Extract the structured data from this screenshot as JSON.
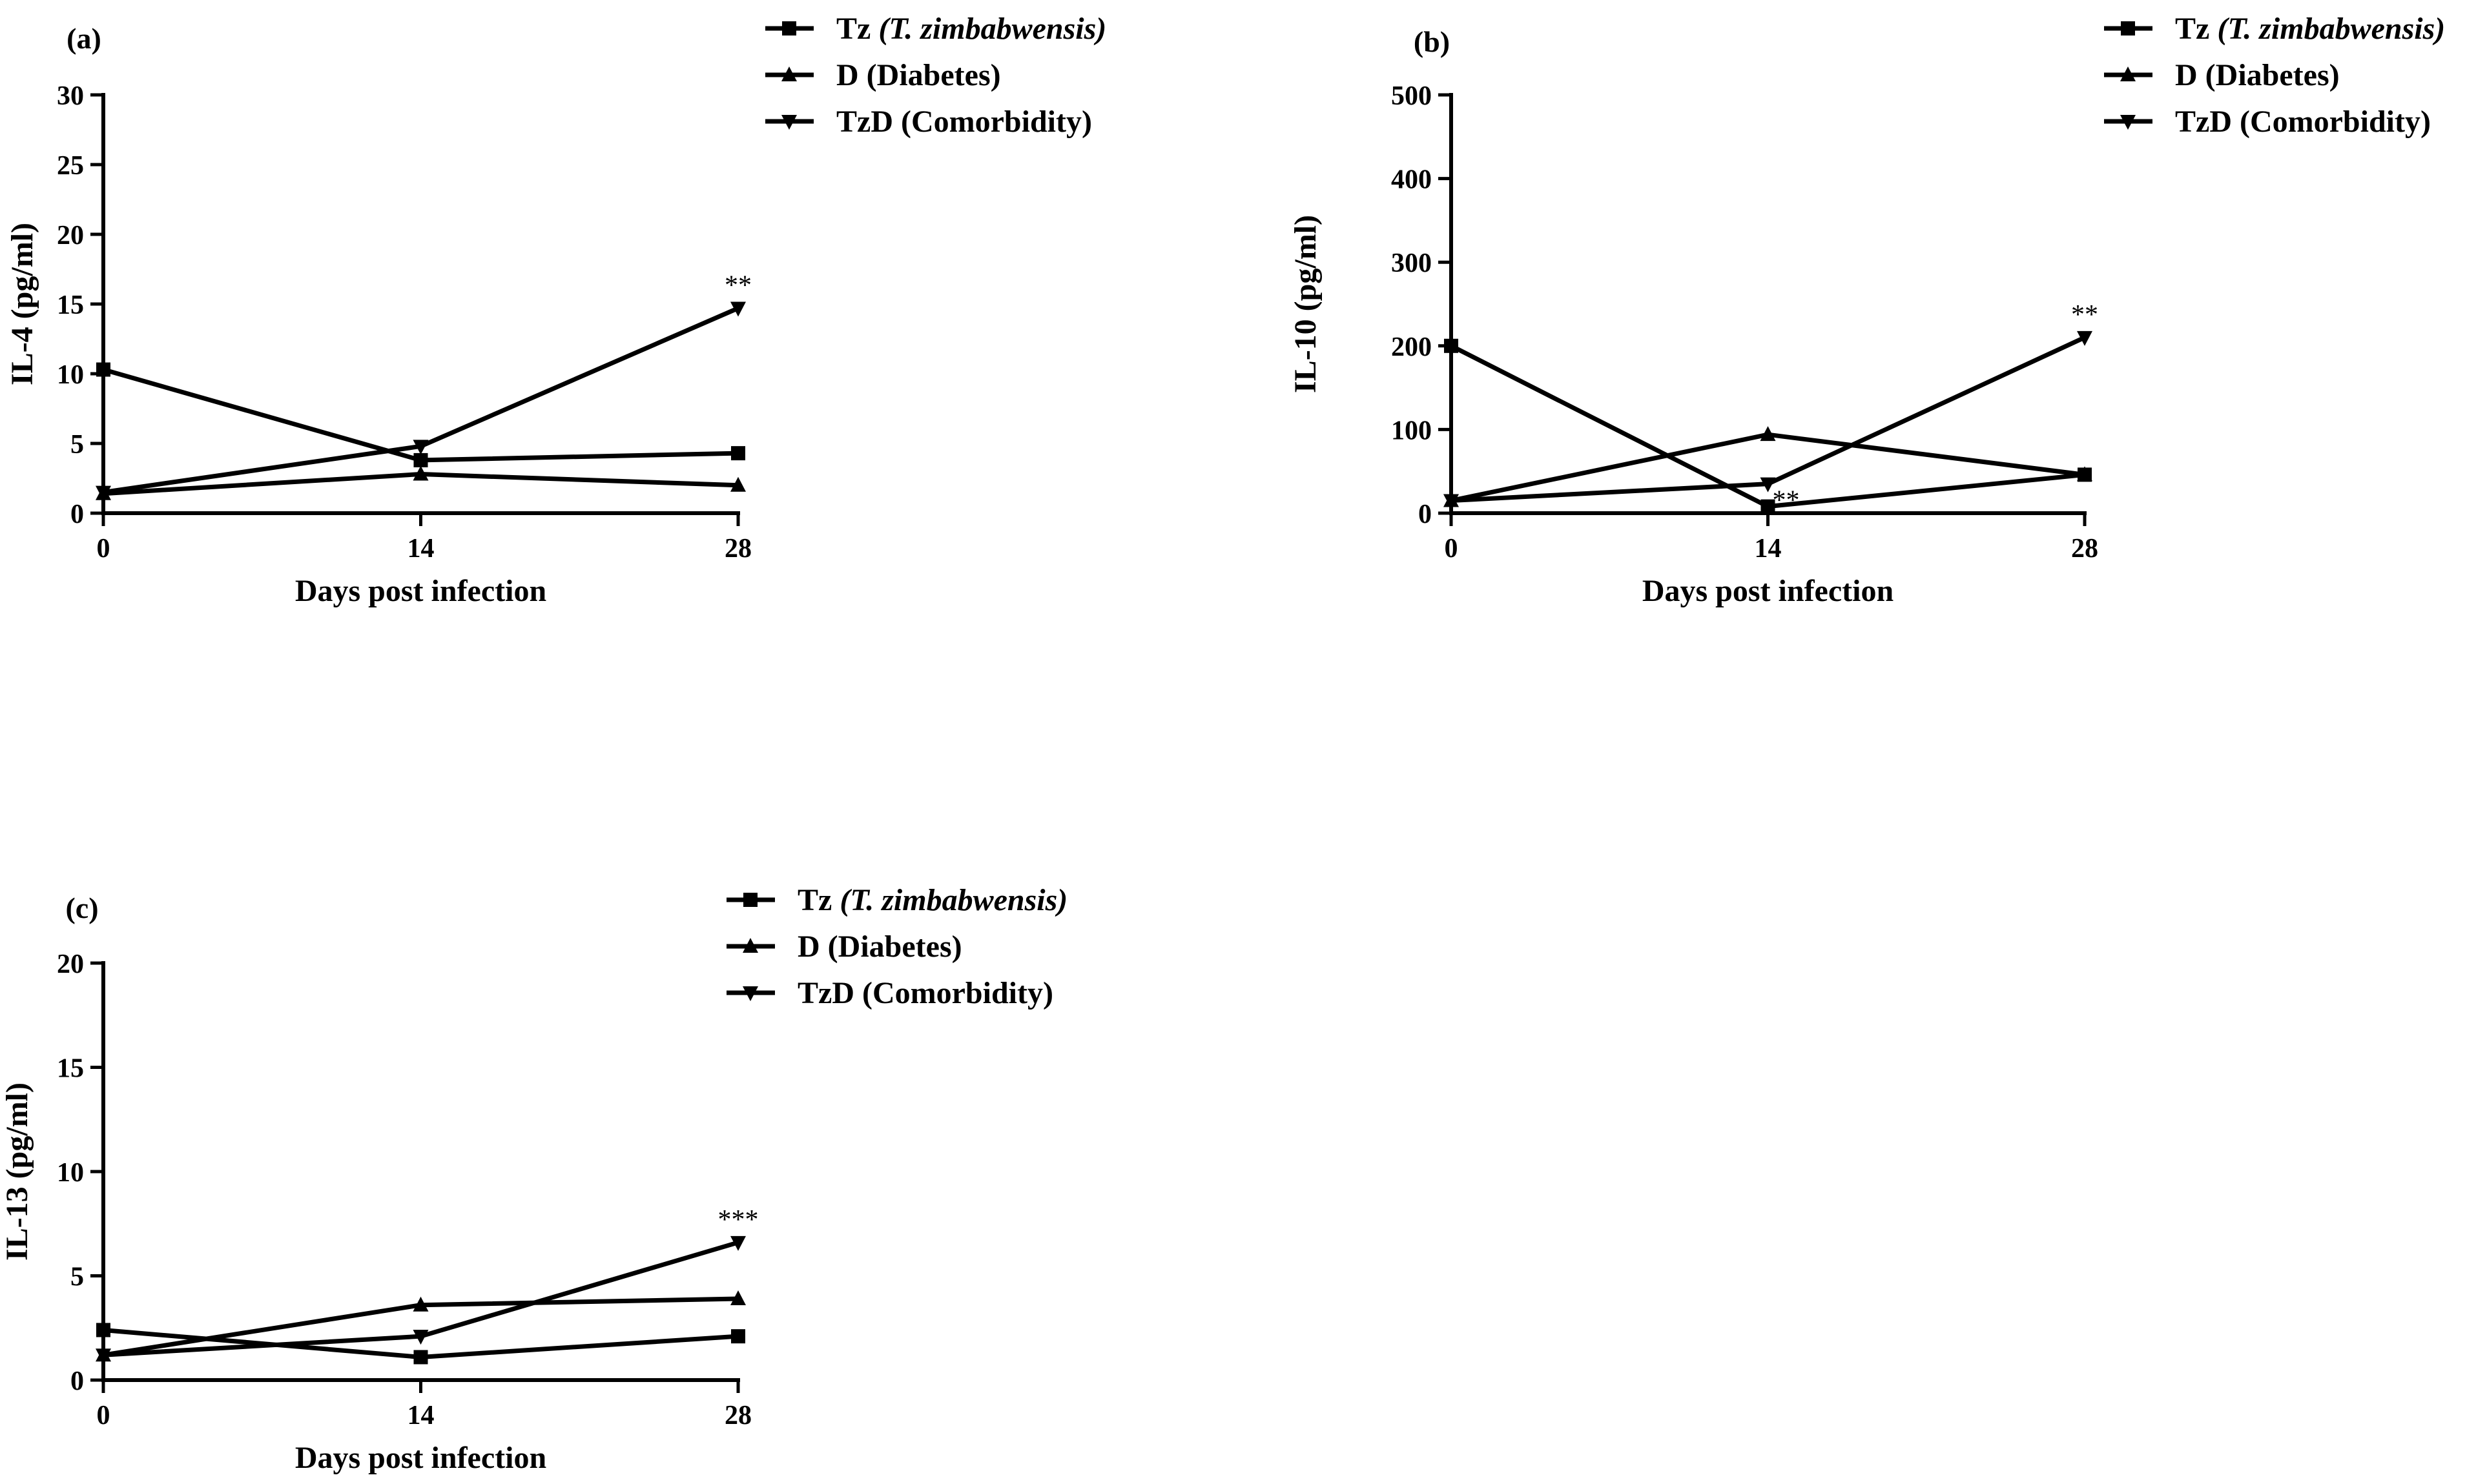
{
  "chart_data": [
    {
      "panel": "(a)",
      "type": "line",
      "ylabel": "IL-4 (pg/ml)",
      "xlabel": "Days post infection",
      "categories": [
        0,
        14,
        28
      ],
      "xticks": [
        "0",
        "14",
        "28"
      ],
      "ylim": [
        0,
        30
      ],
      "yticks": [
        0,
        5,
        10,
        15,
        20,
        25,
        30
      ],
      "series": [
        {
          "key": "tz",
          "name": "Tz",
          "name_italic": "(T. zimbabwensis)",
          "marker": "square",
          "values": [
            10.3,
            3.8,
            4.3
          ]
        },
        {
          "key": "d",
          "name": "D (Diabetes)",
          "name_italic": "",
          "marker": "triangle-up",
          "values": [
            1.4,
            2.8,
            2.0
          ]
        },
        {
          "key": "tzd",
          "name": "TzD (Comorbidity)",
          "name_italic": "",
          "marker": "triangle-down",
          "values": [
            1.5,
            4.8,
            14.7
          ]
        }
      ],
      "annotations": [
        {
          "text": "**",
          "series": "tzd",
          "index": 2
        }
      ]
    },
    {
      "panel": "(b)",
      "type": "line",
      "ylabel": "IL-10 (pg/ml)",
      "xlabel": "Days post infection",
      "categories": [
        0,
        14,
        28
      ],
      "xticks": [
        "0",
        "14",
        "28"
      ],
      "ylim": [
        0,
        500
      ],
      "yticks": [
        0,
        100,
        200,
        300,
        400,
        500
      ],
      "series": [
        {
          "key": "tz",
          "name": "Tz",
          "name_italic": "(T. zimbabwensis)",
          "marker": "square",
          "values": [
            200,
            8,
            46
          ]
        },
        {
          "key": "d",
          "name": "D (Diabetes)",
          "name_italic": "",
          "marker": "triangle-up",
          "values": [
            15,
            94,
            46
          ]
        },
        {
          "key": "tzd",
          "name": "TzD (Comorbidity)",
          "name_italic": "",
          "marker": "triangle-down",
          "values": [
            15,
            35,
            210
          ]
        }
      ],
      "annotations": [
        {
          "text": "**",
          "series": "tz",
          "index": 1
        },
        {
          "text": "**",
          "series": "tzd",
          "index": 2
        }
      ]
    },
    {
      "panel": "(c)",
      "type": "line",
      "ylabel": "IL-13 (pg/ml)",
      "xlabel": "Days post infection",
      "categories": [
        0,
        14,
        28
      ],
      "xticks": [
        "0",
        "14",
        "28"
      ],
      "ylim": [
        0,
        20
      ],
      "yticks": [
        0,
        5,
        10,
        15,
        20
      ],
      "series": [
        {
          "key": "tz",
          "name": "Tz",
          "name_italic": "(T. zimbabwensis)",
          "marker": "square",
          "values": [
            2.4,
            1.1,
            2.1
          ]
        },
        {
          "key": "d",
          "name": "D (Diabetes)",
          "name_italic": "",
          "marker": "triangle-up",
          "values": [
            1.2,
            3.6,
            3.9
          ]
        },
        {
          "key": "tzd",
          "name": "TzD (Comorbidity)",
          "name_italic": "",
          "marker": "triangle-down",
          "values": [
            1.2,
            2.1,
            6.6
          ]
        }
      ],
      "annotations": [
        {
          "text": "***",
          "series": "tzd",
          "index": 2
        }
      ]
    }
  ]
}
